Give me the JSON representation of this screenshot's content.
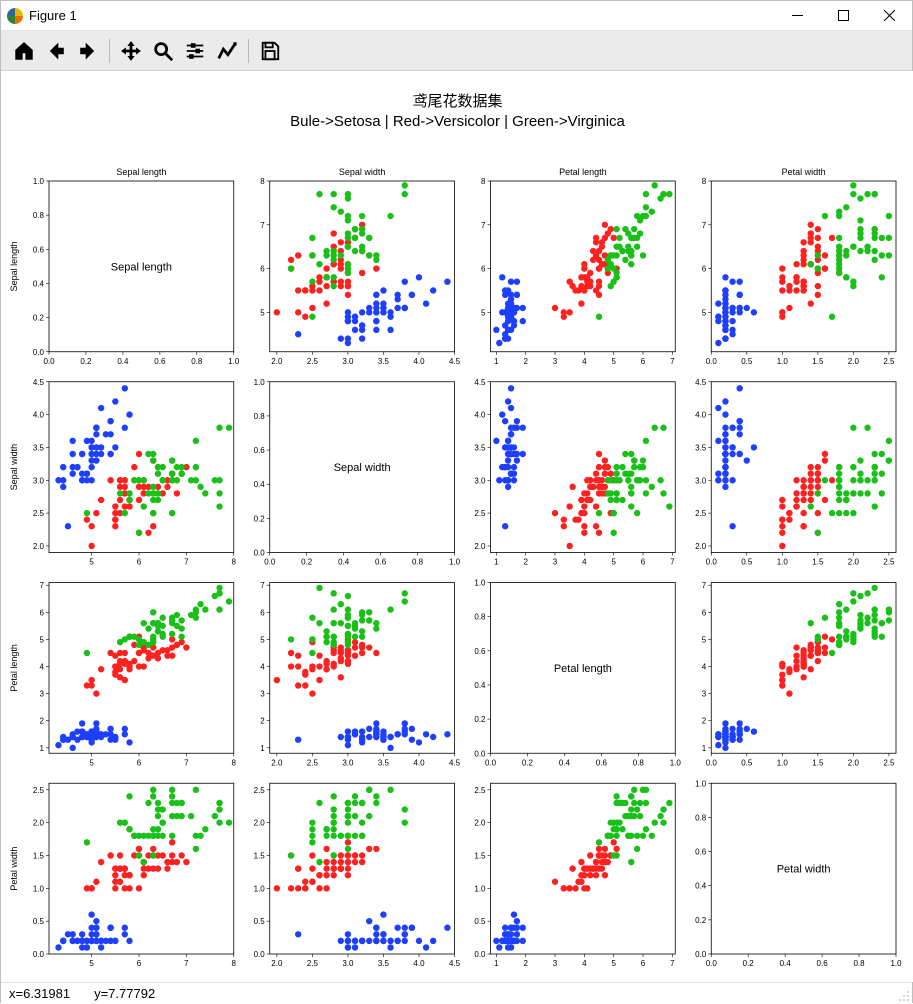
{
  "window": {
    "title": "Figure 1"
  },
  "toolbar": {
    "items": [
      {
        "name": "home-icon",
        "tip": "Home"
      },
      {
        "name": "back-icon",
        "tip": "Back"
      },
      {
        "name": "forward-icon",
        "tip": "Forward"
      },
      {
        "sep": true
      },
      {
        "name": "pan-icon",
        "tip": "Pan"
      },
      {
        "name": "zoom-icon",
        "tip": "Zoom"
      },
      {
        "name": "subplots-icon",
        "tip": "Configure subplots"
      },
      {
        "name": "axes-icon",
        "tip": "Edit axis"
      },
      {
        "sep": true
      },
      {
        "name": "save-icon",
        "tip": "Save"
      }
    ]
  },
  "statusbar": {
    "x_label": "x=6.31981",
    "y_label": "y=7.77792"
  },
  "figure": {
    "suptitle_line1": "鸢尾花数据集",
    "suptitle_line2": "Bule->Setosa | Red->Versicolor | Green->Virginica",
    "title_fontsize": 15,
    "background_color": "#ffffff",
    "grid_color": "#000000",
    "tick_fontsize": 8,
    "label_fontsize": 9,
    "diag_fontsize": 11,
    "marker_size": 3.2,
    "marker_opacity": 1.0,
    "features": [
      "Sepal length",
      "Sepal width",
      "Petal length",
      "Petal width"
    ],
    "classes": [
      {
        "name": "Setosa",
        "color": "#1f3fff"
      },
      {
        "name": "Versicolor",
        "color": "#ff2020"
      },
      {
        "name": "Virginica",
        "color": "#18c018"
      }
    ],
    "axes_ranges": {
      "Sepal length": {
        "min": 4.1,
        "max": 8.0,
        "ticks": [
          5,
          6,
          7,
          8
        ]
      },
      "Sepal width": {
        "min": 1.9,
        "max": 4.5,
        "ticks": [
          2.0,
          2.5,
          3.0,
          3.5,
          4.0,
          4.5
        ]
      },
      "Petal length": {
        "min": 0.8,
        "max": 7.1,
        "ticks": [
          1,
          2,
          3,
          4,
          5,
          6,
          7
        ]
      },
      "Petal width": {
        "min": 0.0,
        "max": 2.6,
        "ticks": [
          0.0,
          0.5,
          1.0,
          1.5,
          2.0,
          2.5
        ]
      },
      "diag": {
        "min": 0.0,
        "max": 1.0,
        "ticks": [
          0.0,
          0.2,
          0.4,
          0.6,
          0.8,
          1.0
        ]
      }
    },
    "data": {
      "Sepal length": {
        "Setosa": [
          5.1,
          4.9,
          4.7,
          4.6,
          5.0,
          5.4,
          4.6,
          5.0,
          4.4,
          4.9,
          5.4,
          4.8,
          4.8,
          4.3,
          5.8,
          5.7,
          5.4,
          5.1,
          5.7,
          5.1,
          5.4,
          5.1,
          4.6,
          5.1,
          4.8,
          5.0,
          5.0,
          5.2,
          5.2,
          4.7,
          4.8,
          5.4,
          5.2,
          5.5,
          4.9,
          5.0,
          5.5,
          4.9,
          4.4,
          5.1,
          5.0,
          4.5,
          4.4,
          5.0,
          5.1,
          4.8,
          5.1,
          4.6,
          5.3,
          5.0
        ],
        "Versicolor": [
          7.0,
          6.4,
          6.9,
          5.5,
          6.5,
          5.7,
          6.3,
          4.9,
          6.6,
          5.2,
          5.0,
          5.9,
          6.0,
          6.1,
          5.6,
          6.7,
          5.6,
          5.8,
          6.2,
          5.6,
          5.9,
          6.1,
          6.3,
          6.1,
          6.4,
          6.6,
          6.8,
          6.7,
          6.0,
          5.7,
          5.5,
          5.5,
          5.8,
          6.0,
          5.4,
          6.0,
          6.7,
          6.3,
          5.6,
          5.5,
          5.5,
          6.1,
          5.8,
          5.0,
          5.6,
          5.7,
          5.7,
          6.2,
          5.1,
          5.7
        ],
        "Virginica": [
          6.3,
          5.8,
          7.1,
          6.3,
          6.5,
          7.6,
          4.9,
          7.3,
          6.7,
          7.2,
          6.5,
          6.4,
          6.8,
          5.7,
          5.8,
          6.4,
          6.5,
          7.7,
          7.7,
          6.0,
          6.9,
          5.6,
          7.7,
          6.3,
          6.7,
          7.2,
          6.2,
          6.1,
          6.4,
          7.2,
          7.4,
          7.9,
          6.4,
          6.3,
          6.1,
          7.7,
          6.3,
          6.4,
          6.0,
          6.9,
          6.7,
          6.9,
          5.8,
          6.8,
          6.7,
          6.7,
          6.3,
          6.5,
          6.2,
          5.9
        ]
      },
      "Sepal width": {
        "Setosa": [
          3.5,
          3.0,
          3.2,
          3.1,
          3.6,
          3.9,
          3.4,
          3.4,
          2.9,
          3.1,
          3.7,
          3.4,
          3.0,
          3.0,
          4.0,
          4.4,
          3.9,
          3.5,
          3.8,
          3.8,
          3.4,
          3.7,
          3.6,
          3.3,
          3.4,
          3.0,
          3.4,
          3.5,
          3.4,
          3.2,
          3.1,
          3.4,
          4.1,
          4.2,
          3.1,
          3.2,
          3.5,
          3.6,
          3.0,
          3.4,
          3.5,
          2.3,
          3.2,
          3.5,
          3.8,
          3.0,
          3.8,
          3.2,
          3.7,
          3.3
        ],
        "Versicolor": [
          3.2,
          3.2,
          3.1,
          2.3,
          2.8,
          2.8,
          3.3,
          2.4,
          2.9,
          2.7,
          2.0,
          3.0,
          2.2,
          2.9,
          2.9,
          3.1,
          3.0,
          2.7,
          2.2,
          2.5,
          3.2,
          2.8,
          2.5,
          2.8,
          2.9,
          3.0,
          2.8,
          3.0,
          2.9,
          2.6,
          2.4,
          2.4,
          2.7,
          2.7,
          3.0,
          3.4,
          3.1,
          2.3,
          3.0,
          2.5,
          2.6,
          3.0,
          2.6,
          2.3,
          2.7,
          3.0,
          2.9,
          2.9,
          2.5,
          2.8
        ],
        "Virginica": [
          3.3,
          2.7,
          3.0,
          2.9,
          3.0,
          3.0,
          2.5,
          2.9,
          2.5,
          3.6,
          3.2,
          2.7,
          3.0,
          2.5,
          2.8,
          3.2,
          3.0,
          3.8,
          2.6,
          2.2,
          3.2,
          2.8,
          2.8,
          2.7,
          3.3,
          3.2,
          2.8,
          3.0,
          2.8,
          3.0,
          2.8,
          3.8,
          2.8,
          2.8,
          2.6,
          3.0,
          3.4,
          3.1,
          3.0,
          3.1,
          3.1,
          3.1,
          2.7,
          3.2,
          3.3,
          3.0,
          2.5,
          3.0,
          3.4,
          3.0
        ]
      },
      "Petal length": {
        "Setosa": [
          1.4,
          1.4,
          1.3,
          1.5,
          1.4,
          1.7,
          1.4,
          1.5,
          1.4,
          1.5,
          1.5,
          1.6,
          1.4,
          1.1,
          1.2,
          1.5,
          1.3,
          1.4,
          1.7,
          1.5,
          1.7,
          1.5,
          1.0,
          1.7,
          1.9,
          1.6,
          1.6,
          1.5,
          1.4,
          1.6,
          1.6,
          1.5,
          1.5,
          1.4,
          1.5,
          1.2,
          1.3,
          1.4,
          1.3,
          1.5,
          1.3,
          1.3,
          1.3,
          1.6,
          1.9,
          1.4,
          1.6,
          1.4,
          1.5,
          1.4
        ],
        "Versicolor": [
          4.7,
          4.5,
          4.9,
          4.0,
          4.6,
          4.5,
          4.7,
          3.3,
          4.6,
          3.9,
          3.5,
          4.2,
          4.0,
          4.7,
          3.6,
          4.4,
          4.5,
          4.1,
          4.5,
          3.9,
          4.8,
          4.0,
          4.9,
          4.7,
          4.3,
          4.4,
          4.8,
          5.0,
          4.5,
          3.5,
          3.8,
          3.7,
          3.9,
          5.1,
          4.5,
          4.5,
          4.7,
          4.4,
          4.1,
          4.0,
          4.4,
          4.6,
          4.0,
          3.3,
          4.2,
          4.2,
          4.2,
          4.3,
          3.0,
          4.1
        ],
        "Virginica": [
          6.0,
          5.1,
          5.9,
          5.6,
          5.8,
          6.6,
          4.5,
          6.3,
          5.8,
          6.1,
          5.1,
          5.3,
          5.5,
          5.0,
          5.1,
          5.3,
          5.5,
          6.7,
          6.9,
          5.0,
          5.7,
          4.9,
          6.7,
          4.9,
          5.7,
          6.0,
          4.8,
          4.9,
          5.6,
          5.8,
          6.1,
          6.4,
          5.6,
          5.1,
          5.6,
          6.1,
          5.6,
          5.5,
          4.8,
          5.4,
          5.6,
          5.1,
          5.1,
          5.9,
          5.7,
          5.2,
          5.0,
          5.2,
          5.4,
          5.1
        ]
      },
      "Petal width": {
        "Setosa": [
          0.2,
          0.2,
          0.2,
          0.2,
          0.2,
          0.4,
          0.3,
          0.2,
          0.2,
          0.1,
          0.2,
          0.2,
          0.1,
          0.1,
          0.2,
          0.4,
          0.4,
          0.3,
          0.3,
          0.3,
          0.2,
          0.4,
          0.2,
          0.5,
          0.2,
          0.2,
          0.4,
          0.2,
          0.2,
          0.2,
          0.2,
          0.4,
          0.1,
          0.2,
          0.2,
          0.2,
          0.2,
          0.1,
          0.2,
          0.2,
          0.3,
          0.3,
          0.2,
          0.6,
          0.4,
          0.3,
          0.2,
          0.2,
          0.2,
          0.2
        ],
        "Versicolor": [
          1.4,
          1.5,
          1.5,
          1.3,
          1.5,
          1.3,
          1.6,
          1.0,
          1.3,
          1.4,
          1.0,
          1.5,
          1.0,
          1.4,
          1.3,
          1.4,
          1.5,
          1.0,
          1.5,
          1.1,
          1.8,
          1.3,
          1.5,
          1.2,
          1.3,
          1.4,
          1.4,
          1.7,
          1.5,
          1.0,
          1.1,
          1.0,
          1.2,
          1.6,
          1.5,
          1.6,
          1.5,
          1.3,
          1.3,
          1.3,
          1.2,
          1.4,
          1.2,
          1.0,
          1.3,
          1.2,
          1.3,
          1.3,
          1.1,
          1.3
        ],
        "Virginica": [
          2.5,
          1.9,
          2.1,
          1.8,
          2.2,
          2.1,
          1.7,
          1.8,
          1.8,
          2.5,
          2.0,
          1.9,
          2.1,
          2.0,
          2.4,
          2.3,
          1.8,
          2.2,
          2.3,
          1.5,
          2.3,
          2.0,
          2.0,
          1.8,
          2.1,
          1.8,
          1.8,
          1.8,
          2.1,
          1.6,
          1.9,
          2.0,
          2.2,
          1.5,
          1.4,
          2.3,
          2.4,
          1.8,
          1.8,
          2.1,
          2.4,
          2.3,
          1.9,
          2.3,
          2.5,
          2.3,
          1.9,
          2.0,
          2.3,
          1.8
        ]
      }
    }
  }
}
